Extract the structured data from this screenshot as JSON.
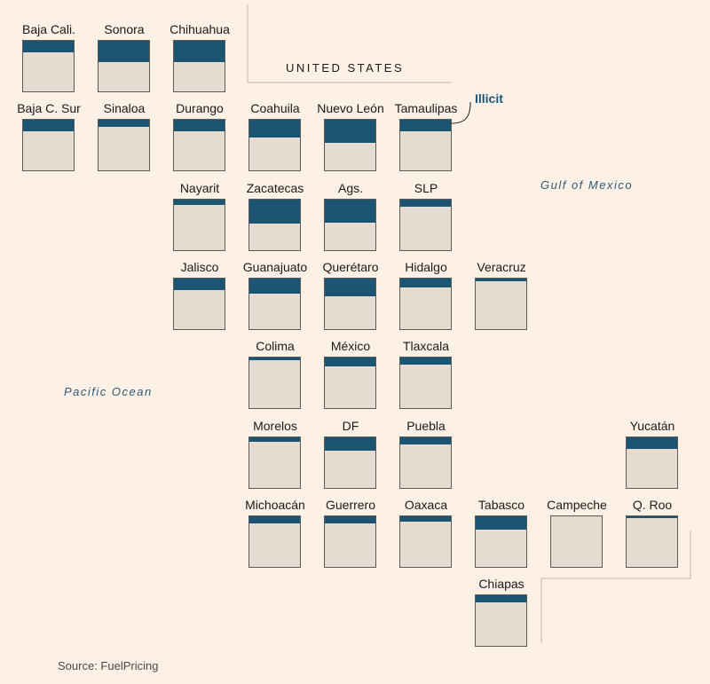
{
  "colors": {
    "background": "#fdf1e6",
    "illicit": "#1b5572",
    "box": "#e6dbd0",
    "border_lines": "#d6cbc0"
  },
  "labels": {
    "united_states": "UNITED STATES",
    "gulf": "Gulf of Mexico",
    "pacific": "Pacific Ocean",
    "illicit": "Illicit",
    "source": "Source: FuelPricing"
  },
  "states": [
    {
      "name": "Baja Cali.",
      "illicit_share": 0.23
    },
    {
      "name": "Sonora",
      "illicit_share": 0.42
    },
    {
      "name": "Chihuahua",
      "illicit_share": 0.42
    },
    {
      "name": "Baja C. Sur",
      "illicit_share": 0.23
    },
    {
      "name": "Sinaloa",
      "illicit_share": 0.14
    },
    {
      "name": "Durango",
      "illicit_share": 0.23
    },
    {
      "name": "Coahuila",
      "illicit_share": 0.35
    },
    {
      "name": "Nuevo León",
      "illicit_share": 0.45
    },
    {
      "name": "Tamaulipas",
      "illicit_share": 0.23
    },
    {
      "name": "Nayarit",
      "illicit_share": 0.1
    },
    {
      "name": "Zacatecas",
      "illicit_share": 0.47
    },
    {
      "name": "Ags.",
      "illicit_share": 0.45
    },
    {
      "name": "SLP",
      "illicit_share": 0.14
    },
    {
      "name": "Jalisco",
      "illicit_share": 0.23
    },
    {
      "name": "Guanajuato",
      "illicit_share": 0.3
    },
    {
      "name": "Querétaro",
      "illicit_share": 0.35
    },
    {
      "name": "Hidalgo",
      "illicit_share": 0.18
    },
    {
      "name": "Veracruz",
      "illicit_share": 0.05
    },
    {
      "name": "Colima",
      "illicit_share": 0.05
    },
    {
      "name": "México",
      "illicit_share": 0.18
    },
    {
      "name": "Tlaxcala",
      "illicit_share": 0.14
    },
    {
      "name": "Morelos",
      "illicit_share": 0.08
    },
    {
      "name": "DF",
      "illicit_share": 0.26
    },
    {
      "name": "Puebla",
      "illicit_share": 0.14
    },
    {
      "name": "Yucatán",
      "illicit_share": 0.23
    },
    {
      "name": "Michoacán",
      "illicit_share": 0.14
    },
    {
      "name": "Guerrero",
      "illicit_share": 0.14
    },
    {
      "name": "Oaxaca",
      "illicit_share": 0.1
    },
    {
      "name": "Tabasco",
      "illicit_share": 0.26
    },
    {
      "name": "Campeche",
      "illicit_share": 0.0
    },
    {
      "name": "Q. Roo",
      "illicit_share": 0.04
    },
    {
      "name": "Chiapas",
      "illicit_share": 0.14
    }
  ]
}
